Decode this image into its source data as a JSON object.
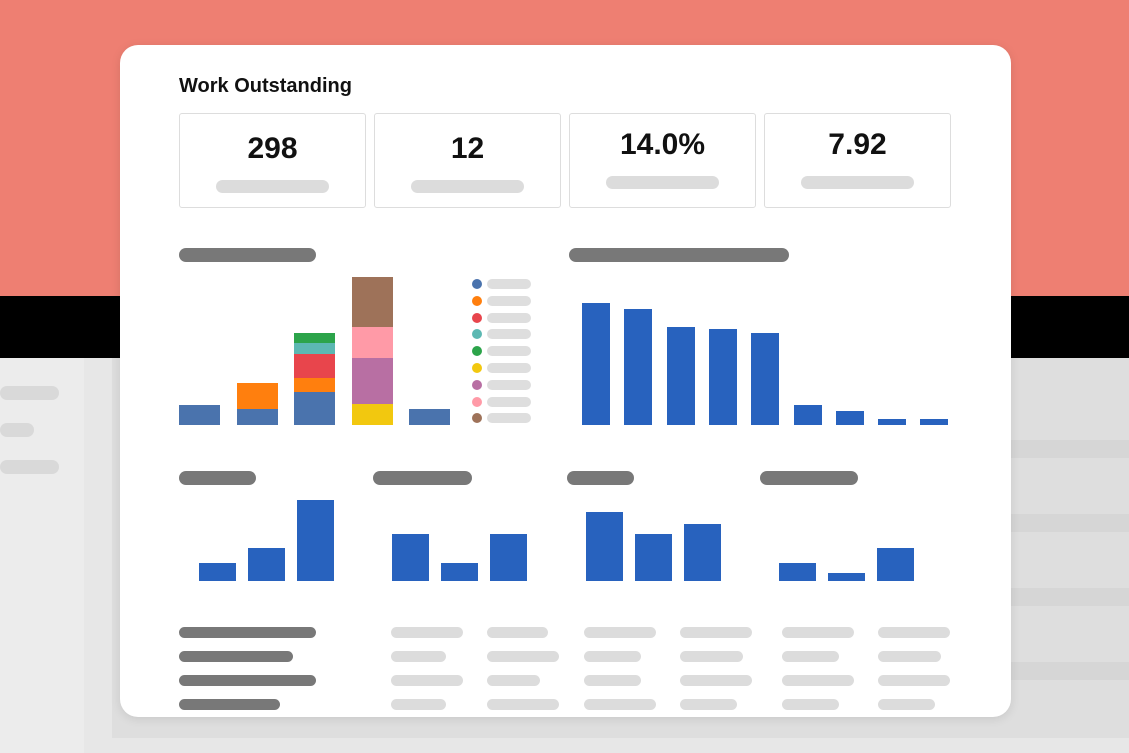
{
  "background": {
    "top_color": "#ee7f72",
    "bar_color": "#000000"
  },
  "card": {
    "title": "Work Outstanding"
  },
  "kpis": [
    {
      "value": "298"
    },
    {
      "value": "12"
    },
    {
      "value": "14.0%"
    },
    {
      "value": "7.92"
    }
  ],
  "colors": {
    "bar_blue": "#2862be",
    "stack_blue": "#4a73ad"
  },
  "stacked_chart": {
    "legend_colors": [
      "#4a73ad",
      "#ff7f0e",
      "#e8454c",
      "#5cb8b2",
      "#2ca44a",
      "#f2c80f",
      "#b86fa3",
      "#ff9aa7",
      "#9e7259"
    ],
    "columns": [
      {
        "segments": [
          {
            "color": "#4a73ad",
            "value": 20
          }
        ]
      },
      {
        "segments": [
          {
            "color": "#4a73ad",
            "value": 16
          },
          {
            "color": "#ff7f0e",
            "value": 26
          }
        ]
      },
      {
        "segments": [
          {
            "color": "#4a73ad",
            "value": 33
          },
          {
            "color": "#ff7f0e",
            "value": 14
          },
          {
            "color": "#e8454c",
            "value": 24
          },
          {
            "color": "#5cb8b2",
            "value": 11
          },
          {
            "color": "#2ca44a",
            "value": 10
          }
        ]
      },
      {
        "segments": [
          {
            "color": "#f2c80f",
            "value": 21
          },
          {
            "color": "#b86fa3",
            "value": 46
          },
          {
            "color": "#ff9aa7",
            "value": 31
          },
          {
            "color": "#9e7259",
            "value": 51
          }
        ]
      },
      {
        "segments": [
          {
            "color": "#4a73ad",
            "value": 16
          }
        ]
      }
    ]
  },
  "bar_chart_main": {
    "values": [
      122,
      116,
      98,
      96,
      92,
      20,
      14,
      6,
      6
    ]
  },
  "small_charts": [
    {
      "values": [
        18,
        33,
        81
      ]
    },
    {
      "values": [
        47,
        18,
        47
      ]
    },
    {
      "values": [
        69,
        47,
        57
      ]
    },
    {
      "values": [
        18,
        8,
        33
      ]
    }
  ]
}
